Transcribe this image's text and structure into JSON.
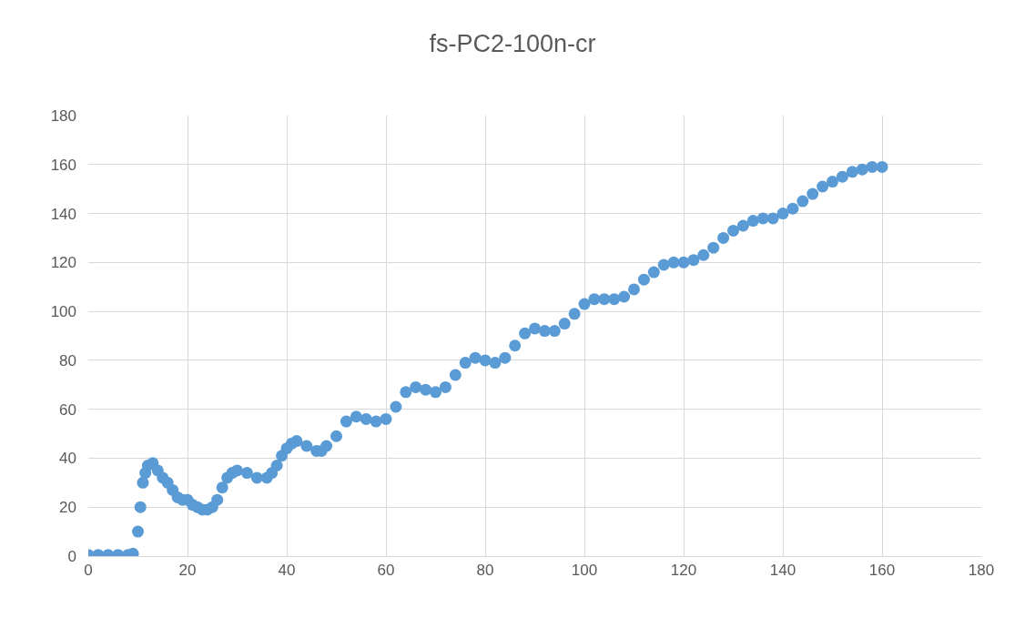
{
  "chart_data": {
    "type": "scatter",
    "title": "fs-PC2-100n-cr",
    "xlim": [
      0,
      180
    ],
    "xticks": [
      0,
      20,
      40,
      60,
      80,
      100,
      120,
      140,
      160,
      180
    ],
    "ylim": [
      0,
      180
    ],
    "yticks": [
      0,
      20,
      40,
      60,
      80,
      100,
      120,
      140,
      160,
      180
    ],
    "grid": true,
    "marker": "circle",
    "series": [
      {
        "color": "#5b9bd5",
        "x": [
          0,
          2,
          4,
          6,
          8,
          9,
          10,
          10.5,
          11,
          11.5,
          12,
          13,
          14,
          15,
          16,
          17,
          18,
          19,
          20,
          21,
          22,
          23,
          24,
          25,
          26,
          27,
          28,
          29,
          30,
          32,
          34,
          36,
          37,
          38,
          39,
          40,
          41,
          42,
          44,
          46,
          47,
          48,
          50,
          52,
          54,
          56,
          58,
          60,
          62,
          64,
          66,
          68,
          70,
          72,
          74,
          76,
          78,
          80,
          82,
          84,
          86,
          88,
          90,
          92,
          94,
          96,
          98,
          100,
          102,
          104,
          106,
          108,
          110,
          112,
          114,
          116,
          118,
          120,
          122,
          124,
          126,
          128,
          130,
          132,
          134,
          136,
          138,
          140,
          142,
          144,
          146,
          148,
          150,
          152,
          154,
          156,
          158,
          160
        ],
        "values": [
          0.5,
          0.5,
          0.5,
          0.5,
          0.5,
          1,
          10,
          20,
          30,
          34,
          37,
          38,
          35,
          32,
          30,
          27,
          24,
          23,
          23,
          21,
          20,
          19,
          19,
          20,
          23,
          28,
          32,
          34,
          35,
          34,
          32,
          32,
          34,
          37,
          41,
          44,
          46,
          47,
          45,
          43,
          43,
          45,
          49,
          55,
          57,
          56,
          55,
          56,
          61,
          67,
          69,
          68,
          67,
          69,
          74,
          79,
          81,
          80,
          79,
          81,
          86,
          91,
          93,
          92,
          92,
          95,
          99,
          103,
          105,
          105,
          105,
          106,
          109,
          113,
          116,
          119,
          120,
          120,
          121,
          123,
          126,
          130,
          133,
          135,
          137,
          138,
          138,
          140,
          142,
          145,
          148,
          151,
          153,
          155,
          157,
          158,
          159,
          159
        ]
      }
    ]
  }
}
